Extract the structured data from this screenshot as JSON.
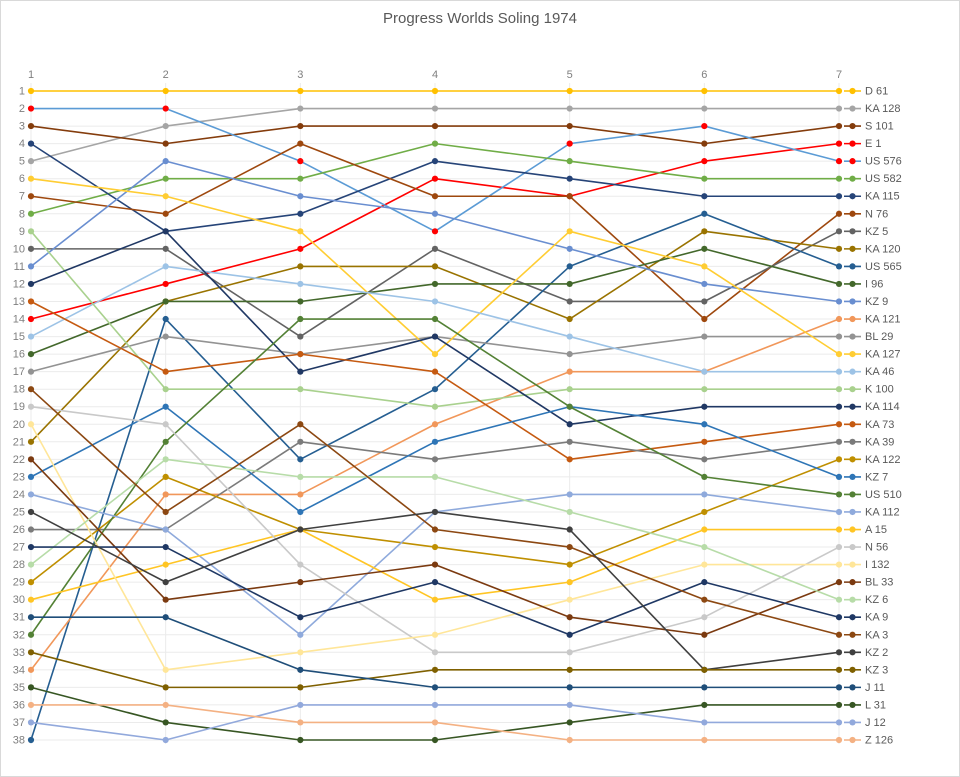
{
  "title": "Progress Worlds Soling 1974",
  "chart_data": {
    "type": "line",
    "description": "Bump chart of finishing position (1=best) per race for each boat, races 1-7",
    "x": [
      1,
      2,
      3,
      4,
      5,
      6,
      7
    ],
    "x_tick_labels": [
      "1",
      "2",
      "3",
      "4",
      "5",
      "6",
      "7"
    ],
    "y_axis": {
      "min": 1,
      "max": 38,
      "inverted": true,
      "tick_labels": [
        "1",
        "2",
        "3",
        "4",
        "5",
        "6",
        "7",
        "8",
        "9",
        "10",
        "11",
        "12",
        "13",
        "14",
        "15",
        "16",
        "17",
        "18",
        "19",
        "20",
        "21",
        "22",
        "23",
        "24",
        "25",
        "26",
        "27",
        "28",
        "29",
        "30",
        "31",
        "32",
        "33",
        "34",
        "35",
        "36",
        "37",
        "38"
      ]
    },
    "grid": true,
    "legend_position": "right",
    "axis_label_color": "#7f7f7f",
    "grid_color": "#ebebeb",
    "series": [
      {
        "name": "D 61",
        "color": "#FFC000",
        "values": [
          1,
          1,
          1,
          1,
          1,
          1,
          1
        ]
      },
      {
        "name": "KA 128",
        "color": "#A5A5A5",
        "values": [
          5,
          3,
          2,
          2,
          2,
          2,
          2
        ]
      },
      {
        "name": "S 101",
        "color": "#843C0C",
        "values": [
          3,
          4,
          3,
          3,
          3,
          4,
          3
        ]
      },
      {
        "name": "E 1",
        "color": "#FF0000",
        "values": [
          14,
          12,
          10,
          6,
          7,
          5,
          4
        ]
      },
      {
        "name": "US 576",
        "color": "#5B9BD5",
        "marker_color": "#FF0000",
        "values": [
          2,
          2,
          5,
          9,
          4,
          3,
          5
        ]
      },
      {
        "name": "US 582",
        "color": "#70AD47",
        "values": [
          8,
          6,
          6,
          4,
          5,
          6,
          6
        ]
      },
      {
        "name": "KA 115",
        "color": "#264478",
        "values": [
          4,
          9,
          8,
          5,
          6,
          7,
          7
        ]
      },
      {
        "name": "N 76",
        "color": "#9E480E",
        "values": [
          7,
          8,
          4,
          7,
          7,
          14,
          8
        ]
      },
      {
        "name": "KZ 5",
        "color": "#636363",
        "values": [
          10,
          10,
          15,
          10,
          13,
          13,
          9
        ]
      },
      {
        "name": "KA 120",
        "color": "#997300",
        "values": [
          21,
          13,
          11,
          11,
          14,
          9,
          10
        ]
      },
      {
        "name": "US 565",
        "color": "#255E91",
        "values": [
          38,
          14,
          22,
          18,
          11,
          8,
          11
        ]
      },
      {
        "name": "I 96",
        "color": "#43682B",
        "values": [
          16,
          13,
          13,
          12,
          12,
          10,
          12
        ]
      },
      {
        "name": "KZ 9",
        "color": "#698ED0",
        "values": [
          11,
          5,
          7,
          8,
          10,
          12,
          13
        ]
      },
      {
        "name": "KA 121",
        "color": "#F1975A",
        "values": [
          34,
          24,
          24,
          20,
          17,
          17,
          14
        ]
      },
      {
        "name": "BL 29",
        "color": "#939393",
        "values": [
          17,
          15,
          16,
          15,
          16,
          15,
          15
        ]
      },
      {
        "name": "KA 127",
        "color": "#FFCD33",
        "values": [
          6,
          7,
          9,
          16,
          9,
          11,
          16
        ]
      },
      {
        "name": "KA 46",
        "color": "#9DC3E6",
        "values": [
          15,
          11,
          12,
          13,
          15,
          17,
          17
        ]
      },
      {
        "name": "K 100",
        "color": "#A9D18E",
        "values": [
          9,
          18,
          18,
          19,
          18,
          18,
          18
        ]
      },
      {
        "name": "KA 114",
        "color": "#203864",
        "values": [
          12,
          9,
          17,
          15,
          20,
          19,
          19
        ]
      },
      {
        "name": "KA 73",
        "color": "#C55A11",
        "values": [
          13,
          17,
          16,
          17,
          22,
          21,
          20
        ]
      },
      {
        "name": "KA 39",
        "color": "#7B7B7B",
        "values": [
          26,
          26,
          21,
          22,
          21,
          22,
          21
        ]
      },
      {
        "name": "KA 122",
        "color": "#BF8F00",
        "values": [
          29,
          23,
          26,
          27,
          28,
          25,
          22
        ]
      },
      {
        "name": "KZ 7",
        "color": "#2E75B6",
        "values": [
          23,
          19,
          25,
          21,
          19,
          20,
          23
        ]
      },
      {
        "name": "US 510",
        "color": "#538135",
        "values": [
          32,
          21,
          14,
          14,
          19,
          23,
          24
        ]
      },
      {
        "name": "KA 112",
        "color": "#8FAADC",
        "values": [
          24,
          26,
          32,
          25,
          24,
          24,
          25
        ]
      },
      {
        "name": "A 15",
        "color": "#FFC524",
        "values": [
          30,
          28,
          26,
          30,
          29,
          26,
          26
        ]
      },
      {
        "name": "N 56",
        "color": "#C9C9C9",
        "values": [
          19,
          20,
          28,
          33,
          33,
          31,
          27
        ]
      },
      {
        "name": "I 132",
        "color": "#FFE699",
        "values": [
          20,
          34,
          33,
          32,
          30,
          28,
          28
        ]
      },
      {
        "name": "BL 33",
        "color": "#7B3A10",
        "values": [
          22,
          30,
          29,
          28,
          31,
          32,
          29
        ]
      },
      {
        "name": "KZ 6",
        "color": "#B7DCA8",
        "values": [
          28,
          22,
          23,
          23,
          25,
          27,
          30
        ]
      },
      {
        "name": "KA 9",
        "color": "#1F3864",
        "values": [
          27,
          27,
          31,
          29,
          32,
          29,
          31
        ]
      },
      {
        "name": "KA 3",
        "color": "#8C4812",
        "values": [
          18,
          25,
          20,
          26,
          27,
          30,
          32
        ]
      },
      {
        "name": "KZ 2",
        "color": "#404040",
        "values": [
          25,
          29,
          26,
          25,
          26,
          34,
          33
        ]
      },
      {
        "name": "KZ 3",
        "color": "#7F6000",
        "values": [
          33,
          35,
          35,
          34,
          34,
          34,
          34
        ]
      },
      {
        "name": "J 11",
        "color": "#1F4E79",
        "values": [
          31,
          31,
          34,
          35,
          35,
          35,
          35
        ]
      },
      {
        "name": "L 31",
        "color": "#375623",
        "values": [
          35,
          37,
          38,
          38,
          37,
          36,
          36
        ]
      },
      {
        "name": "J 12",
        "color": "#92A9DC",
        "values": [
          37,
          38,
          36,
          36,
          36,
          37,
          37
        ]
      },
      {
        "name": "Z 126",
        "color": "#F4B183",
        "values": [
          36,
          36,
          37,
          37,
          38,
          38,
          38
        ]
      }
    ]
  }
}
